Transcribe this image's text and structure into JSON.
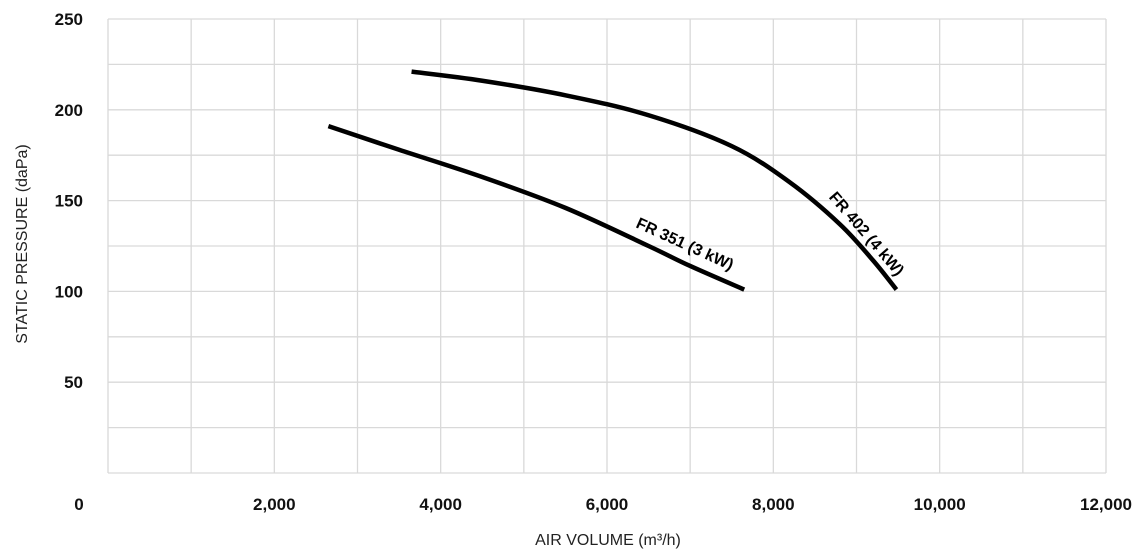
{
  "chart_data": {
    "type": "line",
    "xlabel": "AIR VOLUME (m³/h)",
    "ylabel": "STATIC PRESSURE (daPa)",
    "xlim": [
      0,
      12000
    ],
    "ylim": [
      0,
      250
    ],
    "x_ticks": [
      0,
      2000,
      4000,
      6000,
      8000,
      10000,
      12000
    ],
    "x_tick_labels": [
      "0",
      "2,000",
      "4,000",
      "6,000",
      "8,000",
      "10,000",
      "12,000"
    ],
    "y_ticks": [
      50,
      100,
      150,
      200,
      250
    ],
    "y_tick_labels": [
      "50",
      "100",
      "150",
      "200",
      "250"
    ],
    "x_gridlines": [
      0,
      1000,
      2000,
      3000,
      4000,
      5000,
      6000,
      7000,
      8000,
      9000,
      10000,
      11000,
      12000
    ],
    "y_gridlines": [
      25,
      50,
      75,
      100,
      125,
      150,
      175,
      200,
      225,
      250
    ],
    "grid": true,
    "legend": "none",
    "series": [
      {
        "name": "FR 351 (3 kW)",
        "x": [
          2650,
          3500,
          4500,
          5500,
          6500,
          7000,
          7650
        ],
        "y": [
          191,
          178,
          163,
          146,
          125,
          114,
          101
        ]
      },
      {
        "name": "FR 402 (4 kW)",
        "x": [
          3650,
          4500,
          5500,
          6500,
          7500,
          8200,
          8800,
          9200,
          9480
        ],
        "y": [
          221,
          216,
          208,
          197,
          180,
          160,
          137,
          117,
          101
        ]
      }
    ]
  }
}
